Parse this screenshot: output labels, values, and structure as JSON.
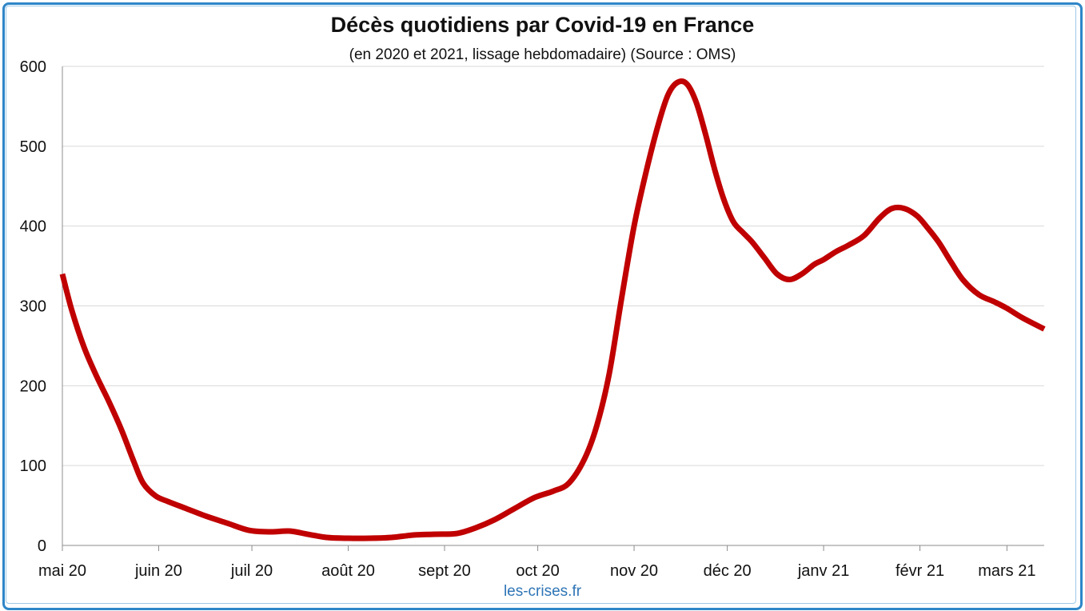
{
  "chart_data": {
    "type": "line",
    "title": "Décès quotidiens par Covid-19 en France",
    "subtitle": "(en 2020 et 2021, lissage hebdomadaire) (Source : OMS)",
    "credit": "les-crises.fr",
    "xlabel": "",
    "ylabel": "",
    "ylim": [
      0,
      600
    ],
    "yticks": [
      0,
      100,
      200,
      300,
      400,
      500,
      600
    ],
    "xticks": [
      "mai 20",
      "juin 20",
      "juil 20",
      "août 20",
      "sept 20",
      "oct 20",
      "nov 20",
      "déc 20",
      "janv 21",
      "févr 21",
      "mars 21"
    ],
    "x_start": "2020-05-01",
    "x_end": "2021-03-13",
    "grid": "horizontal",
    "legend": "none",
    "line_color": "#c00000",
    "series": [
      {
        "x": [
          "2020-05-01",
          "2020-05-04",
          "2020-05-08",
          "2020-05-12",
          "2020-05-16",
          "2020-05-20",
          "2020-05-24",
          "2020-05-27",
          "2020-05-31",
          "2020-06-04",
          "2020-06-10",
          "2020-06-16",
          "2020-06-23",
          "2020-06-30",
          "2020-07-07",
          "2020-07-13",
          "2020-07-19",
          "2020-07-25",
          "2020-08-01",
          "2020-08-08",
          "2020-08-15",
          "2020-08-22",
          "2020-08-29",
          "2020-09-05",
          "2020-09-11",
          "2020-09-17",
          "2020-09-23",
          "2020-09-30",
          "2020-10-06",
          "2020-10-11",
          "2020-10-16",
          "2020-10-20",
          "2020-10-24",
          "2020-10-28",
          "2020-11-01",
          "2020-11-05",
          "2020-11-09",
          "2020-11-12",
          "2020-11-15",
          "2020-11-18",
          "2020-11-21",
          "2020-11-24",
          "2020-11-27",
          "2020-11-30",
          "2020-12-03",
          "2020-12-06",
          "2020-12-09",
          "2020-12-13",
          "2020-12-17",
          "2020-12-21",
          "2020-12-25",
          "2020-12-29",
          "2021-01-01",
          "2021-01-05",
          "2021-01-09",
          "2021-01-14",
          "2021-01-19",
          "2021-01-23",
          "2021-01-27",
          "2021-01-31",
          "2021-02-03",
          "2021-02-07",
          "2021-02-11",
          "2021-02-15",
          "2021-02-20",
          "2021-02-25",
          "2021-03-01",
          "2021-03-06",
          "2021-03-13"
        ],
        "y": [
          340,
          295,
          248,
          212,
          180,
          145,
          105,
          78,
          62,
          55,
          46,
          37,
          28,
          19,
          17,
          18,
          14,
          10,
          9,
          9,
          10,
          13,
          14,
          15,
          22,
          32,
          45,
          60,
          68,
          78,
          108,
          150,
          215,
          310,
          400,
          470,
          530,
          565,
          580,
          578,
          555,
          515,
          470,
          432,
          405,
          392,
          380,
          360,
          340,
          333,
          340,
          352,
          358,
          368,
          376,
          388,
          410,
          422,
          422,
          413,
          400,
          380,
          355,
          332,
          314,
          305,
          297,
          285,
          271
        ]
      }
    ]
  }
}
